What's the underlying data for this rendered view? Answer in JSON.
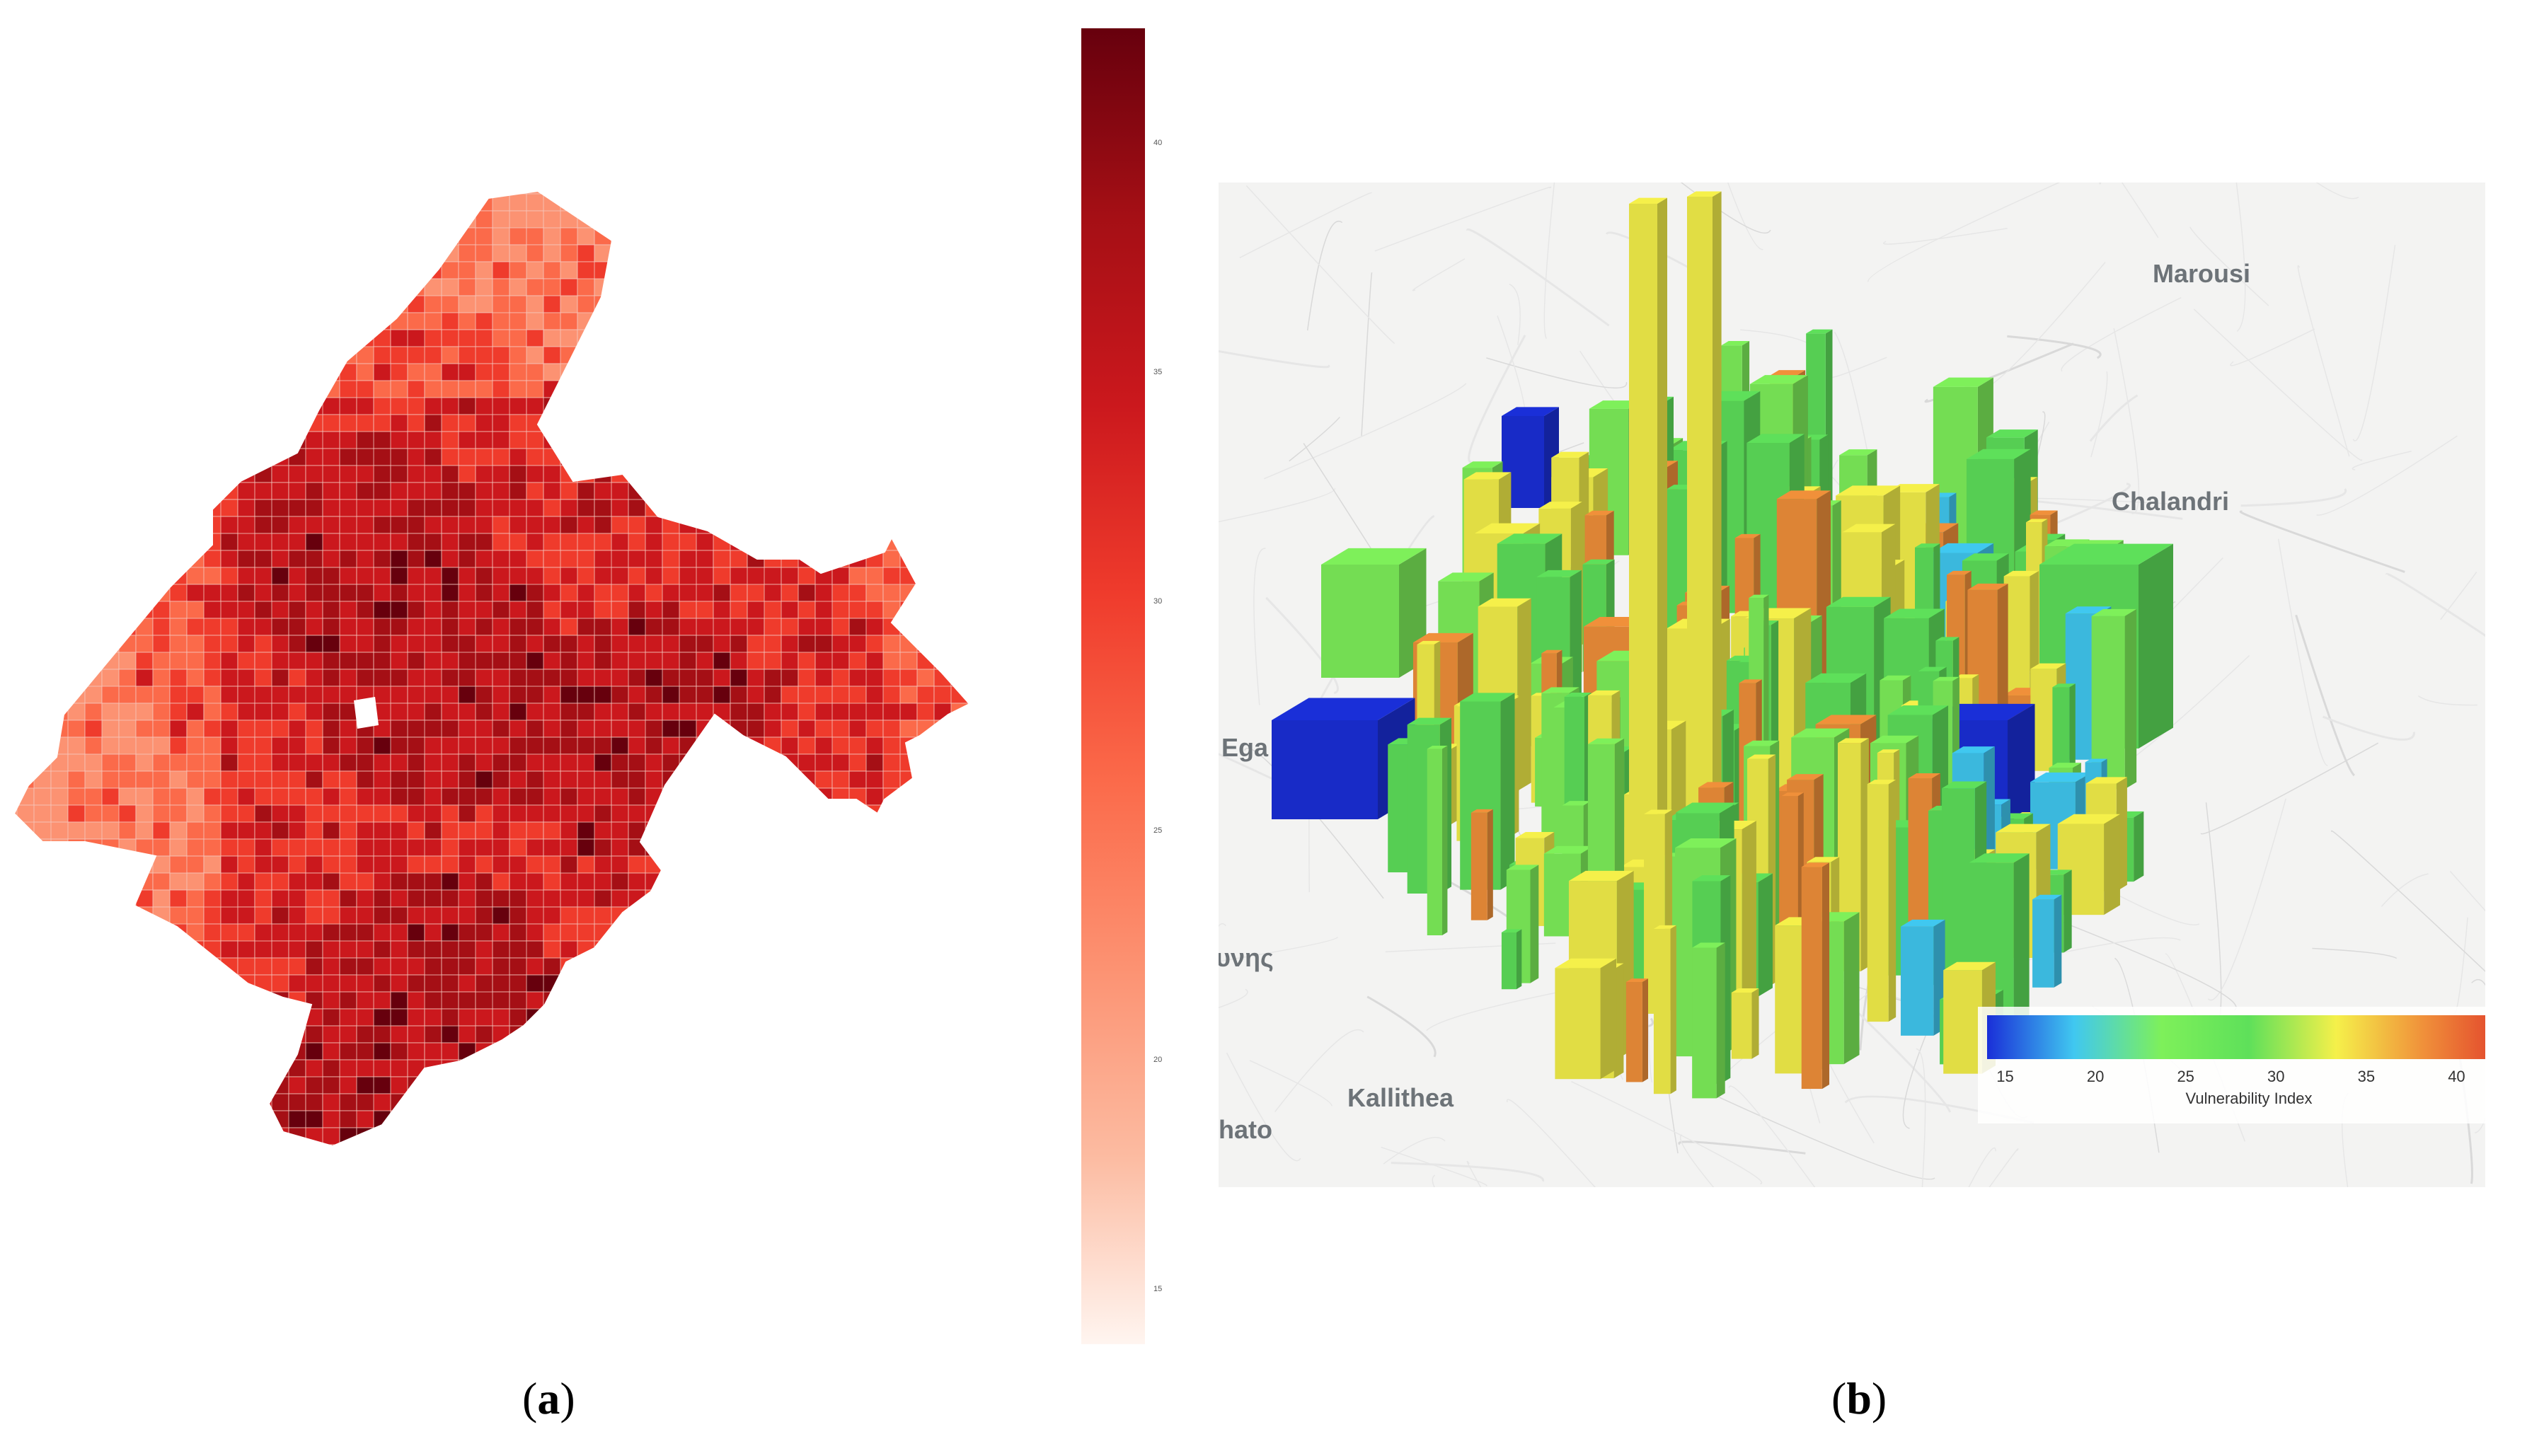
{
  "panel_a": {
    "label_open": "(",
    "label_letter": "a",
    "label_close": ")",
    "colorbar": {
      "colors": [
        "#fff5f0",
        "#fcbba1",
        "#fc9272",
        "#fb6a4a",
        "#ef3b2c",
        "#cb181d",
        "#a50f15",
        "#67000d"
      ],
      "ticks": [
        "15",
        "20",
        "25",
        "30",
        "35",
        "40"
      ]
    }
  },
  "panel_b": {
    "label_open": "(",
    "label_letter": "b",
    "label_close": ")",
    "places": {
      "marousi": "Marousi",
      "chalandri": "Chalandri",
      "ega": "Ega",
      "vnis": "υνης",
      "kallithea": "Kallithea",
      "hato": "hato"
    },
    "legend": {
      "title": "Vulnerability Index",
      "ticks": [
        "15",
        "20",
        "25",
        "30",
        "35",
        "40"
      ],
      "colors": [
        "#1a2fd8",
        "#40c8f0",
        "#7ef05a",
        "#5ee05a",
        "#f5f04a",
        "#f0903a",
        "#e03a2a"
      ]
    }
  }
}
